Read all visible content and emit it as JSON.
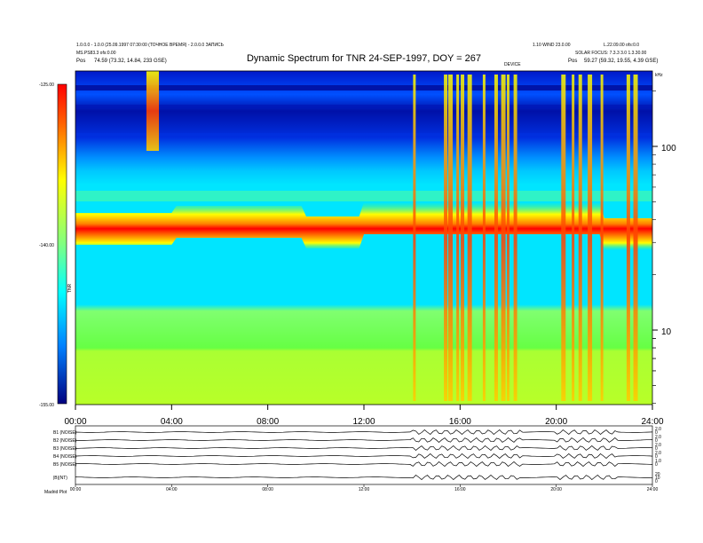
{
  "header": {
    "left_line1": "1.0.0.0 - 1.0.0 (25.09.1997 07:30:00 (ТОЧНОЕ ВРЕМЯ) - 2.0.0.0 ЗАПИСЬ",
    "left_line2": "MS.PS83.3 ofs:0.00",
    "left_pos_label": "Pos",
    "left_pos_value": "74.59 (73.32, 14.84, 233 GSE)",
    "right_line1": "1.10 WIND 23.0.00",
    "right_line2": "L.22.09.00 ofs:0.0",
    "right_line3": "SOLAR FOCUS: 7.3.3 3.0 1.3.30.00",
    "right_pos_label": "Pos",
    "right_pos_value": "59.27 (59.32, 19.55, 4.39 GSE)",
    "mid_marker": "DEVICE"
  },
  "chart_data": {
    "type": "heatmap",
    "title": "Dynamic Spectrum for TNR 24-SEP-1997, DOY = 267",
    "x_tick_labels": [
      "00:00",
      "04:00",
      "08:00",
      "12:00",
      "16:00",
      "20:00",
      "24:00"
    ],
    "x_range_hours": [
      0,
      24
    ],
    "y_label_right_unit": "kHz",
    "y_right_ticks": [
      "100",
      "10"
    ],
    "colorbar_label": "TNR",
    "colorbar_ticks": [
      "-125.00",
      "-140.00",
      "-155.00"
    ],
    "colorbar_range": [
      -155,
      -125
    ],
    "colormap": [
      "#00007f",
      "#0000ff",
      "#0080ff",
      "#00ffff",
      "#80ff80",
      "#ffff00",
      "#ff8000",
      "#ff0000",
      "#7f0000"
    ],
    "panel_colors": {
      "deep_blue": "#0000aa",
      "blue": "#0040ff",
      "cyan": "#00e5ff",
      "green": "#55ff55",
      "yellow_green": "#aaff30",
      "yellow": "#ffff00",
      "orange": "#ff8800",
      "red": "#ff0000"
    },
    "bursts_hours": [
      14.1,
      15.4,
      15.6,
      15.9,
      16.1,
      16.4,
      17.0,
      17.5,
      17.8,
      18.0,
      18.3,
      20.3,
      20.7,
      21.0,
      21.4,
      21.9,
      23.0,
      23.3
    ]
  },
  "strip_panels": {
    "rows": [
      {
        "label": "B1 (NOISE)",
        "right_ticks": [
          "2.0",
          "0"
        ]
      },
      {
        "label": "B2 (NOISE)",
        "right_ticks": [
          "2.0",
          "0"
        ]
      },
      {
        "label": "B3 (NOISE)",
        "right_ticks": [
          "2.0",
          "0"
        ]
      },
      {
        "label": "B4 (NOISE)",
        "right_ticks": [
          "2.0",
          "0"
        ]
      },
      {
        "label": "B5 (NOISE)",
        "right_ticks": [
          "1.0",
          "0"
        ]
      },
      {
        "label": "|B|(NT)",
        "right_ticks": [
          "20",
          "10",
          "0"
        ]
      }
    ],
    "x_tick_labels": [
      "00:00",
      "04:00",
      "08:00",
      "12:00",
      "16:00",
      "20:00",
      "24:00"
    ],
    "footer_left": "Madrid Plot"
  }
}
